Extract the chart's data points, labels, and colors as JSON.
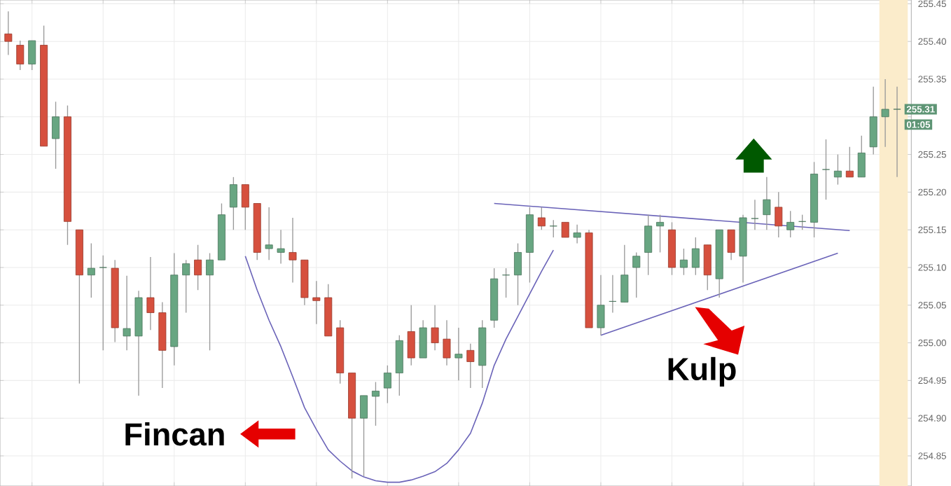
{
  "chart_data": {
    "type": "candlestick",
    "categories": [
      null,
      null,
      null,
      null,
      null,
      null,
      null,
      null,
      null,
      null,
      null,
      null,
      null,
      null,
      null,
      null,
      null,
      null,
      null,
      null,
      null,
      null,
      null,
      null,
      null,
      null,
      null,
      null,
      null,
      null,
      null,
      null,
      null,
      null,
      null,
      null,
      null,
      null,
      null,
      null,
      null,
      null,
      null,
      null,
      null,
      null,
      null,
      null,
      null,
      null,
      null,
      null,
      null,
      null,
      null,
      null,
      null,
      null,
      null,
      null,
      null,
      null,
      null,
      null,
      null,
      null,
      null,
      null,
      null,
      null,
      null,
      null,
      null,
      null,
      null,
      null
    ],
    "ohlc": [
      [
        255.41,
        255.44,
        255.382,
        255.4
      ],
      [
        255.395,
        255.401,
        255.362,
        255.37
      ],
      [
        255.37,
        255.401,
        255.362,
        255.401
      ],
      [
        255.395,
        255.421,
        255.261,
        255.261
      ],
      [
        255.271,
        255.32,
        255.231,
        255.3
      ],
      [
        255.3,
        255.315,
        255.13,
        255.161
      ],
      [
        255.15,
        255.15,
        254.946,
        255.09
      ],
      [
        255.09,
        255.132,
        255.06,
        255.099
      ],
      [
        255.1,
        255.116,
        254.99,
        255.1
      ],
      [
        255.099,
        255.11,
        255.001,
        255.02
      ],
      [
        255.009,
        255.089,
        254.99,
        255.019
      ],
      [
        255.009,
        255.069,
        254.93,
        255.06
      ],
      [
        255.06,
        255.114,
        255.017,
        255.04
      ],
      [
        255.04,
        255.054,
        254.94,
        254.99
      ],
      [
        254.995,
        255.119,
        254.97,
        255.09
      ],
      [
        255.09,
        255.11,
        255.04,
        255.105
      ],
      [
        255.11,
        255.13,
        255.07,
        255.09
      ],
      [
        255.09,
        255.119,
        254.99,
        255.11
      ],
      [
        255.11,
        255.185,
        255.11,
        255.17
      ],
      [
        255.18,
        255.22,
        255.15,
        255.21
      ],
      [
        255.21,
        255.21,
        255.15,
        255.18
      ],
      [
        255.185,
        255.185,
        255.11,
        255.12
      ],
      [
        255.125,
        255.18,
        255.11,
        255.13
      ],
      [
        255.12,
        255.15,
        255.105,
        255.125
      ],
      [
        255.12,
        255.166,
        255.08,
        255.11
      ],
      [
        255.11,
        255.11,
        255.05,
        255.06
      ],
      [
        255.06,
        255.082,
        255.025,
        255.056
      ],
      [
        255.06,
        255.078,
        255.009,
        255.009
      ],
      [
        255.02,
        255.03,
        254.946,
        254.96
      ],
      [
        254.96,
        254.96,
        254.82,
        254.9
      ],
      [
        254.9,
        254.93,
        254.823,
        254.93
      ],
      [
        254.929,
        254.948,
        254.89,
        254.936
      ],
      [
        254.94,
        254.97,
        254.92,
        254.96
      ],
      [
        254.96,
        255.01,
        254.93,
        255.003
      ],
      [
        255.015,
        255.05,
        254.97,
        254.98
      ],
      [
        254.98,
        255.03,
        254.98,
        255.02
      ],
      [
        255.02,
        255.05,
        254.99,
        255.0
      ],
      [
        255.005,
        255.03,
        254.97,
        254.98
      ],
      [
        254.98,
        255.02,
        254.95,
        254.985
      ],
      [
        254.99,
        254.999,
        254.94,
        254.975
      ],
      [
        254.97,
        255.03,
        254.94,
        255.02
      ],
      [
        255.03,
        255.099,
        255.02,
        255.085
      ],
      [
        255.09,
        255.099,
        255.06,
        255.09
      ],
      [
        255.09,
        255.132,
        255.05,
        255.12
      ],
      [
        255.12,
        255.18,
        255.08,
        255.17
      ],
      [
        255.166,
        255.18,
        255.15,
        255.155
      ],
      [
        255.155,
        255.163,
        255.14,
        255.155
      ],
      [
        255.16,
        255.16,
        255.14,
        255.14
      ],
      [
        255.14,
        255.157,
        255.132,
        255.146
      ],
      [
        255.146,
        255.15,
        255.02,
        255.02
      ],
      [
        255.02,
        255.09,
        255.01,
        255.05
      ],
      [
        255.055,
        255.09,
        255.04,
        255.055
      ],
      [
        255.054,
        255.13,
        255.054,
        255.09
      ],
      [
        255.1,
        255.12,
        255.06,
        255.115
      ],
      [
        255.12,
        255.17,
        255.09,
        255.155
      ],
      [
        255.155,
        255.17,
        255.12,
        255.16
      ],
      [
        255.15,
        255.16,
        255.09,
        255.1
      ],
      [
        255.1,
        255.125,
        255.09,
        255.11
      ],
      [
        255.1,
        255.14,
        255.09,
        255.125
      ],
      [
        255.13,
        255.13,
        255.07,
        255.09
      ],
      [
        255.085,
        255.15,
        255.06,
        255.15
      ],
      [
        255.15,
        255.15,
        255.11,
        255.12
      ],
      [
        255.115,
        255.17,
        255.08,
        255.166
      ],
      [
        255.165,
        255.19,
        255.15,
        255.165
      ],
      [
        255.17,
        255.22,
        255.15,
        255.19
      ],
      [
        255.18,
        255.2,
        255.14,
        255.155
      ],
      [
        255.15,
        255.175,
        255.14,
        255.16
      ],
      [
        255.161,
        255.17,
        255.15,
        255.161
      ],
      [
        255.16,
        255.24,
        255.14,
        255.224
      ],
      [
        255.23,
        255.27,
        255.19,
        255.23
      ],
      [
        255.22,
        255.25,
        255.21,
        255.228
      ],
      [
        255.228,
        255.26,
        255.22,
        255.22
      ],
      [
        255.22,
        255.275,
        255.22,
        255.252
      ],
      [
        255.26,
        255.34,
        255.25,
        255.3
      ],
      [
        255.3,
        255.35,
        255.26,
        255.31
      ],
      [
        255.31,
        255.34,
        255.22,
        255.31
      ]
    ],
    "series": [
      {
        "type": "line",
        "color": "#6a63b8",
        "values": [
          null,
          null,
          null,
          null,
          null,
          null,
          null,
          null,
          null,
          null,
          null,
          null,
          null,
          null,
          null,
          null,
          null,
          null,
          null,
          null,
          255.115,
          255.07,
          255.03,
          254.995,
          254.955,
          254.914,
          254.885,
          254.858,
          254.843,
          254.83,
          254.822,
          254.817,
          254.815,
          254.815,
          254.818,
          254.823,
          254.829,
          254.84,
          254.858,
          254.88,
          254.92,
          254.97,
          255.005,
          255.035,
          255.065,
          255.095,
          255.123,
          null,
          null,
          null,
          null,
          null,
          null,
          null,
          null,
          null,
          null,
          null,
          null,
          null,
          null,
          null,
          null,
          null,
          null,
          null,
          null,
          null,
          null,
          null,
          null,
          null,
          null,
          null,
          null,
          null
        ]
      },
      {
        "type": "line",
        "color": "#6a63b8",
        "values": [
          null,
          null,
          null,
          null,
          null,
          null,
          null,
          null,
          null,
          null,
          null,
          null,
          null,
          null,
          null,
          null,
          null,
          null,
          null,
          null,
          null,
          null,
          null,
          null,
          null,
          null,
          null,
          null,
          null,
          null,
          null,
          null,
          null,
          null,
          null,
          null,
          null,
          null,
          null,
          null,
          null,
          255.185,
          null,
          null,
          null,
          null,
          null,
          null,
          null,
          null,
          null,
          null,
          null,
          null,
          null,
          null,
          null,
          null,
          null,
          null,
          null,
          null,
          null,
          null,
          null,
          null,
          null,
          null,
          null,
          null,
          null,
          255.149,
          null,
          null,
          null,
          null
        ]
      },
      {
        "type": "line",
        "color": "#6a63b8",
        "values": [
          null,
          null,
          null,
          null,
          null,
          null,
          null,
          null,
          null,
          null,
          null,
          null,
          null,
          null,
          null,
          null,
          null,
          null,
          null,
          null,
          null,
          null,
          null,
          null,
          null,
          null,
          null,
          null,
          null,
          null,
          null,
          null,
          null,
          null,
          null,
          null,
          null,
          null,
          null,
          null,
          null,
          null,
          null,
          null,
          null,
          null,
          null,
          null,
          null,
          null,
          255.01,
          null,
          null,
          null,
          null,
          null,
          null,
          null,
          null,
          null,
          null,
          null,
          null,
          null,
          null,
          null,
          null,
          null,
          null,
          null,
          255.119,
          null,
          null,
          null,
          null,
          null
        ]
      }
    ],
    "ylim": [
      254.81,
      255.455
    ],
    "yticks": [
      254.85,
      {
        "value": 254.9,
        "label": "254.90"
      },
      254.95,
      {
        "value": 255.0,
        "label": "255.00"
      },
      255.05,
      {
        "value": 255.1,
        "label": "255.10"
      },
      255.15,
      {
        "value": 255.2,
        "label": "255.20"
      },
      255.25,
      {
        "value": 255.3,
        "label": null
      },
      255.35,
      {
        "value": 255.4,
        "label": "255.40"
      },
      255.45
    ],
    "grid": true,
    "tick_labels": "y",
    "annotations": [
      "Fincan",
      "Kulp",
      {
        "text": "255.31",
        "y": 255.31
      },
      "01:05"
    ]
  }
}
